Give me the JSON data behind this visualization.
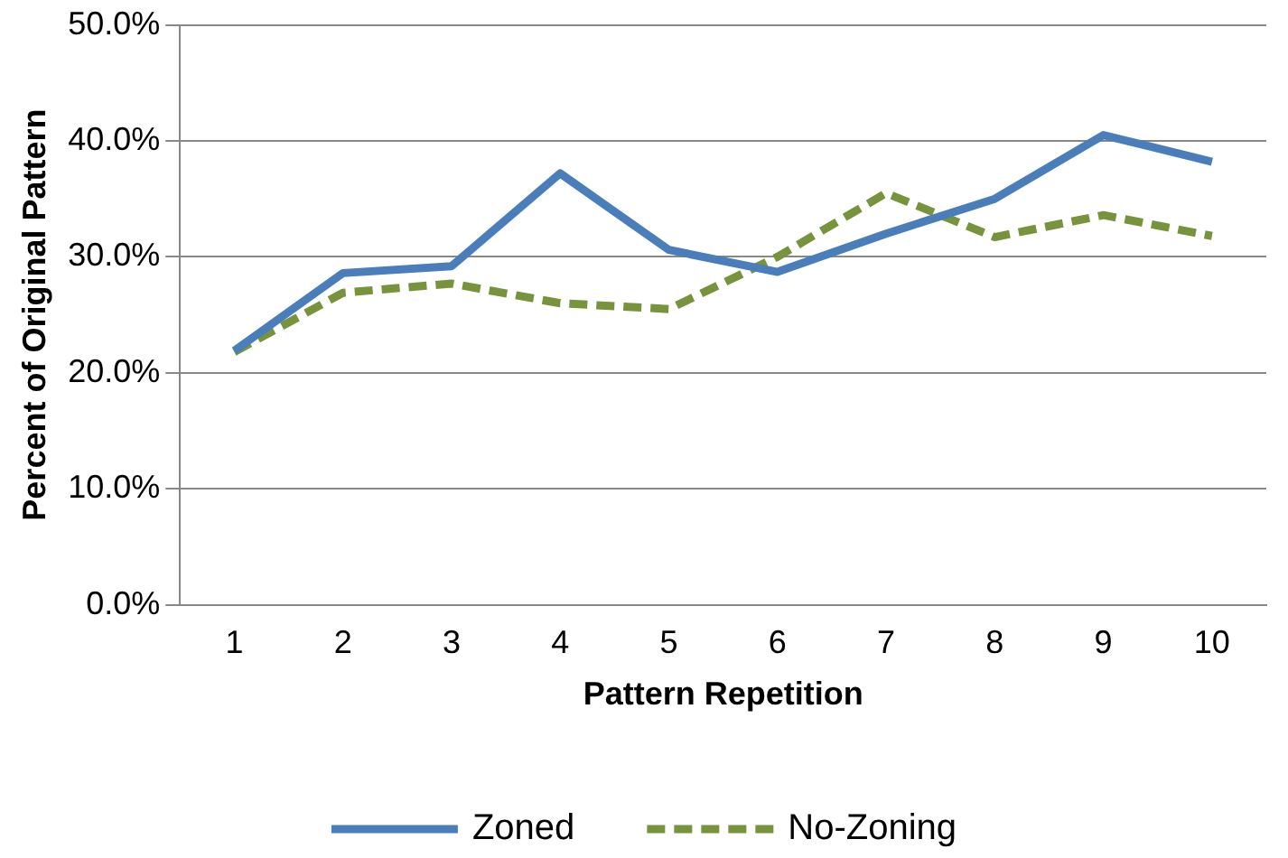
{
  "chart_data": {
    "type": "line",
    "xlabel": "Pattern Repetition",
    "ylabel": "Percent of Original Pattern",
    "categories": [
      "1",
      "2",
      "3",
      "4",
      "5",
      "6",
      "7",
      "8",
      "9",
      "10"
    ],
    "series": [
      {
        "name": "Zoned",
        "color": "#4a7ebb",
        "line_style": "solid",
        "values": [
          21.9,
          28.6,
          29.2,
          37.2,
          30.6,
          28.7,
          32.0,
          35.0,
          40.5,
          38.2
        ]
      },
      {
        "name": "No-Zoning",
        "color": "#77933c",
        "line_style": "dashed",
        "values": [
          21.8,
          26.9,
          27.7,
          26.0,
          25.5,
          30.0,
          35.5,
          31.7,
          33.6,
          31.8
        ]
      }
    ],
    "ylim": [
      0,
      50
    ],
    "yticks": [
      {
        "value": 0,
        "label": "0.0%"
      },
      {
        "value": 10,
        "label": "10.0%"
      },
      {
        "value": 20,
        "label": "20.0%"
      },
      {
        "value": 30,
        "label": "30.0%"
      },
      {
        "value": 40,
        "label": "40.0%"
      },
      {
        "value": 50,
        "label": "50.0%"
      }
    ],
    "grid": "y",
    "legend": "bottom",
    "marker": "none"
  }
}
